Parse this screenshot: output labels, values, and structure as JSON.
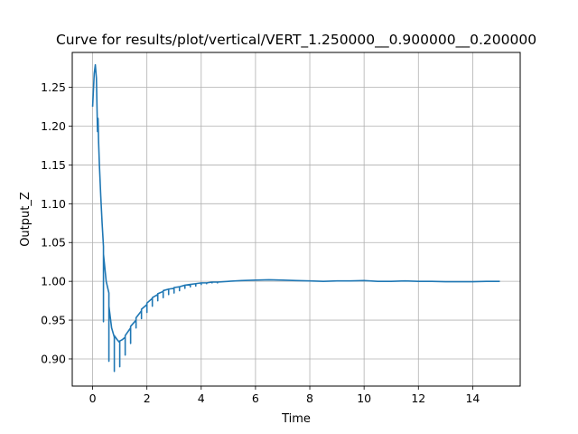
{
  "chart_data": {
    "type": "line",
    "title": "Curve for results/plot/vertical/VERT_1.250000__0.900000__0.200000",
    "xlabel": "Time",
    "ylabel": "Output_Z",
    "xlim": [
      -0.75,
      15.75
    ],
    "ylim": [
      0.865,
      1.295
    ],
    "xticks": [
      0,
      2,
      4,
      6,
      8,
      10,
      12,
      14
    ],
    "yticks": [
      0.9,
      0.95,
      1.0,
      1.05,
      1.1,
      1.15,
      1.2,
      1.25
    ],
    "ytick_labels": [
      "0.90",
      "0.95",
      "1.00",
      "1.05",
      "1.10",
      "1.15",
      "1.20",
      "1.25"
    ],
    "grid": true,
    "color": "#1f77b4",
    "series": [
      {
        "x": [
          0.0,
          0.06,
          0.1,
          0.14,
          0.18,
          0.2,
          0.22,
          0.25,
          0.3,
          0.35,
          0.4,
          0.4,
          0.4,
          0.5,
          0.6,
          0.6,
          0.6,
          0.7,
          0.8,
          0.8,
          0.8,
          0.9,
          1.0,
          1.0,
          1.0,
          1.1,
          1.2,
          1.2,
          1.2,
          1.4,
          1.4,
          1.4,
          1.6,
          1.6,
          1.6,
          1.8,
          1.8,
          1.8,
          2.0,
          2.0,
          2.0,
          2.2,
          2.2,
          2.2,
          2.4,
          2.4,
          2.4,
          2.6,
          2.6,
          2.6,
          2.8,
          2.8,
          2.8,
          3.0,
          3.0,
          3.0,
          3.2,
          3.2,
          3.2,
          3.4,
          3.4,
          3.4,
          3.6,
          3.6,
          3.6,
          3.8,
          3.8,
          3.8,
          4.0,
          4.0,
          4.0,
          4.2,
          4.2,
          4.2,
          4.4,
          4.4,
          4.4,
          4.6,
          4.6,
          4.6,
          5.0,
          5.5,
          6.0,
          6.5,
          7.0,
          7.5,
          8.0,
          8.5,
          9.0,
          9.5,
          10.0,
          10.5,
          11.0,
          11.5,
          12.0,
          12.5,
          13.0,
          13.5,
          14.0,
          14.5,
          15.0
        ],
        "y": [
          1.225,
          1.268,
          1.279,
          1.262,
          1.193,
          1.21,
          1.18,
          1.15,
          1.11,
          1.075,
          1.045,
          0.948,
          1.035,
          1.0,
          0.985,
          0.897,
          0.968,
          0.94,
          0.928,
          0.884,
          0.93,
          0.925,
          0.921,
          0.89,
          0.923,
          0.925,
          0.928,
          0.905,
          0.93,
          0.94,
          0.92,
          0.942,
          0.95,
          0.94,
          0.953,
          0.962,
          0.952,
          0.964,
          0.97,
          0.96,
          0.972,
          0.978,
          0.968,
          0.979,
          0.983,
          0.975,
          0.984,
          0.987,
          0.979,
          0.988,
          0.99,
          0.983,
          0.99,
          0.991,
          0.985,
          0.992,
          0.993,
          0.988,
          0.993,
          0.995,
          0.991,
          0.995,
          0.996,
          0.993,
          0.996,
          0.997,
          0.994,
          0.997,
          0.998,
          0.996,
          0.998,
          0.998,
          0.997,
          0.998,
          0.999,
          0.998,
          0.999,
          0.999,
          0.998,
          0.999,
          1.0,
          1.001,
          1.0015,
          1.002,
          1.0015,
          1.001,
          1.0005,
          1.0,
          1.0005,
          1.0005,
          1.001,
          1.0,
          1.0,
          1.0005,
          1.0,
          1.0,
          0.9995,
          0.9995,
          0.9995,
          1.0,
          1.0
        ]
      }
    ]
  }
}
